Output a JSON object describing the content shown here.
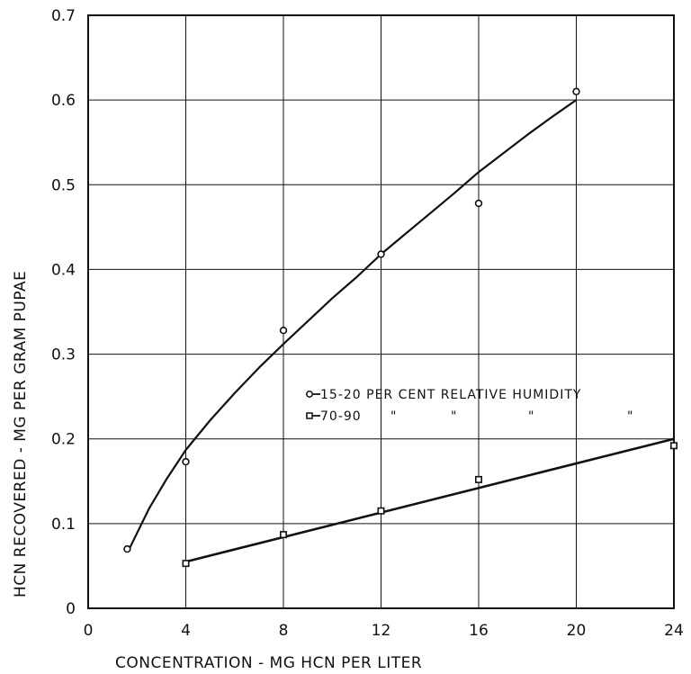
{
  "chart_data": {
    "type": "line",
    "xlabel": "CONCENTRATION -  MG HCN PER LITER",
    "ylabel": "HCN RECOVERED -  MG  PER GRAM PUPAE",
    "xlim": [
      0,
      24
    ],
    "ylim": [
      0,
      0.7
    ],
    "x_ticks": [
      "0",
      "4",
      "8",
      "12",
      "16",
      "20",
      "24"
    ],
    "y_ticks": [
      "0",
      "0.1",
      "0.2",
      "0.3",
      "0.4",
      "0.5",
      "0.6",
      "0.7"
    ],
    "grid": true,
    "legend_position": "center-right",
    "series": [
      {
        "name": "15-20 PER CENT RELATIVE HUMIDITY",
        "marker": "circle",
        "points": [
          [
            1.6,
            0.07
          ],
          [
            4,
            0.173
          ],
          [
            8,
            0.328
          ],
          [
            12,
            0.418
          ],
          [
            16,
            0.478
          ],
          [
            20,
            0.61
          ]
        ],
        "fit": [
          [
            1.7,
            0.071
          ],
          [
            2.5,
            0.118
          ],
          [
            3.2,
            0.152
          ],
          [
            4,
            0.187
          ],
          [
            5,
            0.222
          ],
          [
            6,
            0.254
          ],
          [
            7,
            0.284
          ],
          [
            8,
            0.312
          ],
          [
            9,
            0.339
          ],
          [
            10,
            0.366
          ],
          [
            11,
            0.391
          ],
          [
            12,
            0.418
          ],
          [
            13,
            0.442
          ],
          [
            14,
            0.466
          ],
          [
            15,
            0.49
          ],
          [
            16,
            0.515
          ],
          [
            17,
            0.537
          ],
          [
            18,
            0.559
          ],
          [
            19,
            0.58
          ],
          [
            20,
            0.6
          ]
        ]
      },
      {
        "name": "70-90",
        "ditto": [
          "\"",
          "\"",
          "\"",
          "\""
        ],
        "marker": "square",
        "points": [
          [
            4,
            0.053
          ],
          [
            8,
            0.087
          ],
          [
            12,
            0.115
          ],
          [
            16,
            0.152
          ],
          [
            24,
            0.192
          ]
        ],
        "fit": [
          [
            4,
            0.055
          ],
          [
            24,
            0.2
          ]
        ]
      }
    ]
  }
}
